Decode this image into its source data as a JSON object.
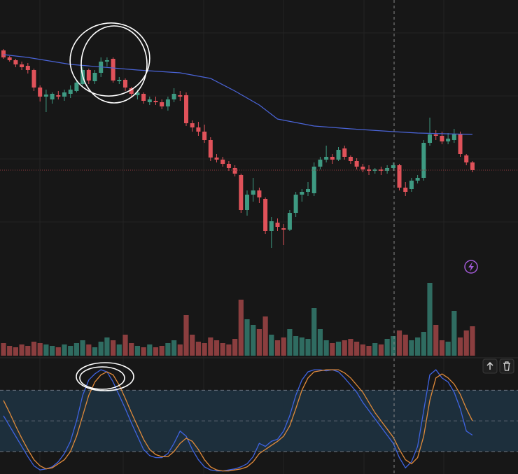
{
  "chart_data": [
    {
      "type": "candlestick",
      "xlim": [
        -0.575,
        84.48
      ],
      "ylim": [
        0,
        400
      ],
      "open": [
        328,
        318,
        314,
        308,
        306,
        300,
        275,
        262,
        258,
        264,
        262,
        266,
        270,
        280,
        300,
        284,
        296,
        312,
        316,
        284,
        286,
        274,
        264,
        266,
        254,
        256,
        254,
        248,
        258,
        264,
        264,
        224,
        218,
        212,
        200,
        175,
        172,
        166,
        160,
        150,
        100,
        122,
        128,
        116,
        70,
        82,
        74,
        72,
        96,
        122,
        126,
        124,
        162,
        172,
        176,
        172,
        188,
        176,
        170,
        162,
        158,
        156,
        158,
        156,
        160,
        164,
        132,
        130,
        142,
        146,
        196,
        208,
        206,
        198,
        200,
        208,
        178,
        168
      ],
      "high": [
        330,
        320,
        316,
        312,
        310,
        302,
        278,
        272,
        268,
        270,
        272,
        278,
        285,
        305,
        302,
        300,
        318,
        318,
        318,
        290,
        288,
        276,
        272,
        268,
        262,
        262,
        258,
        262,
        274,
        270,
        268,
        228,
        226,
        222,
        204,
        180,
        176,
        170,
        164,
        152,
        128,
        146,
        132,
        118,
        90,
        88,
        80,
        100,
        126,
        130,
        140,
        168,
        176,
        192,
        180,
        190,
        192,
        178,
        174,
        166,
        164,
        160,
        162,
        164,
        168,
        166,
        140,
        146,
        150,
        200,
        232,
        214,
        212,
        210,
        216,
        212,
        180,
        170
      ],
      "low": [
        316,
        312,
        304,
        300,
        295,
        270,
        255,
        240,
        252,
        258,
        256,
        260,
        268,
        278,
        280,
        280,
        290,
        305,
        282,
        280,
        270,
        262,
        258,
        252,
        250,
        250,
        244,
        242,
        254,
        256,
        220,
        212,
        206,
        196,
        170,
        168,
        162,
        156,
        148,
        96,
        92,
        112,
        110,
        66,
        46,
        70,
        50,
        70,
        90,
        112,
        120,
        120,
        158,
        168,
        166,
        170,
        172,
        166,
        158,
        154,
        150,
        152,
        150,
        152,
        156,
        128,
        120,
        126,
        138,
        142,
        192,
        200,
        194,
        194,
        196,
        176,
        164,
        154
      ],
      "close": [
        318,
        314,
        308,
        304,
        300,
        275,
        262,
        265,
        266,
        262,
        268,
        272,
        282,
        300,
        285,
        296,
        312,
        314,
        285,
        286,
        275,
        266,
        268,
        256,
        258,
        254,
        248,
        258,
        266,
        262,
        224,
        218,
        212,
        200,
        175,
        172,
        166,
        160,
        152,
        100,
        122,
        128,
        118,
        70,
        84,
        76,
        72,
        96,
        122,
        126,
        130,
        162,
        172,
        176,
        172,
        186,
        176,
        170,
        162,
        158,
        156,
        158,
        156,
        160,
        164,
        132,
        126,
        142,
        146,
        196,
        208,
        206,
        198,
        202,
        208,
        180,
        168,
        157
      ],
      "up_color": "#3e9a82",
      "down_color": "#e0525a",
      "grid": true,
      "overlay": {
        "type": "line",
        "color": "#4a64d8",
        "x": [
          0,
          4,
          11,
          22,
          29,
          34,
          38,
          42,
          45,
          51,
          57,
          64,
          68,
          77
        ],
        "values": [
          322,
          318,
          308,
          300,
          296,
          288,
          270,
          250,
          230,
          220,
          216,
          212,
          210,
          208
        ]
      },
      "price_line_color": "#8c3a3c"
    },
    {
      "type": "bar",
      "xlim": [
        -0.575,
        84.48
      ],
      "ylim": [
        0,
        120
      ],
      "up_color": "#2f6c61",
      "down_color": "#8b3e3f",
      "values": [
        18,
        14,
        12,
        16,
        14,
        20,
        18,
        16,
        14,
        12,
        16,
        14,
        18,
        22,
        16,
        12,
        20,
        26,
        22,
        16,
        30,
        18,
        14,
        12,
        16,
        12,
        14,
        18,
        22,
        16,
        58,
        30,
        20,
        18,
        26,
        22,
        18,
        16,
        24,
        80,
        52,
        44,
        38,
        56,
        30,
        22,
        26,
        38,
        28,
        26,
        24,
        68,
        38,
        22,
        18,
        20,
        22,
        24,
        20,
        16,
        14,
        18,
        16,
        24,
        28,
        36,
        30,
        22,
        26,
        34,
        104,
        44,
        22,
        20,
        64,
        26,
        36,
        42
      ]
    },
    {
      "type": "line",
      "xlim": [
        -0.575,
        84.48
      ],
      "ylim": [
        -2,
        109
      ],
      "bands": [
        20,
        80
      ],
      "midline": 50,
      "band_color": "#1d2f3c",
      "series": [
        {
          "color": "#3f63e0",
          "values": [
            55,
            45,
            35,
            25,
            15,
            6,
            2,
            3,
            5,
            10,
            18,
            30,
            50,
            75,
            90,
            96,
            100,
            98,
            88,
            75,
            62,
            48,
            35,
            22,
            16,
            14,
            14,
            18,
            28,
            40,
            35,
            22,
            12,
            5,
            2,
            1,
            1,
            2,
            3,
            5,
            8,
            15,
            28,
            25,
            30,
            32,
            40,
            55,
            75,
            90,
            98,
            100,
            100,
            99,
            100,
            98,
            92,
            85,
            78,
            68,
            60,
            52,
            44,
            36,
            28,
            14,
            4,
            10,
            25,
            60,
            95,
            100,
            92,
            88,
            78,
            62,
            40,
            36
          ]
        },
        {
          "color": "#e08a3a",
          "values": [
            70,
            58,
            45,
            33,
            22,
            12,
            6,
            3,
            4,
            8,
            12,
            20,
            35,
            55,
            75,
            88,
            95,
            98,
            95,
            85,
            72,
            58,
            45,
            32,
            22,
            17,
            15,
            15,
            20,
            28,
            33,
            30,
            22,
            12,
            5,
            2,
            1,
            1,
            2,
            3,
            5,
            10,
            18,
            22,
            26,
            30,
            35,
            45,
            62,
            80,
            92,
            98,
            99,
            100,
            100,
            100,
            97,
            92,
            85,
            78,
            68,
            58,
            50,
            42,
            34,
            22,
            12,
            8,
            14,
            35,
            70,
            92,
            96,
            92,
            86,
            76,
            62,
            50
          ]
        }
      ]
    }
  ]
}
